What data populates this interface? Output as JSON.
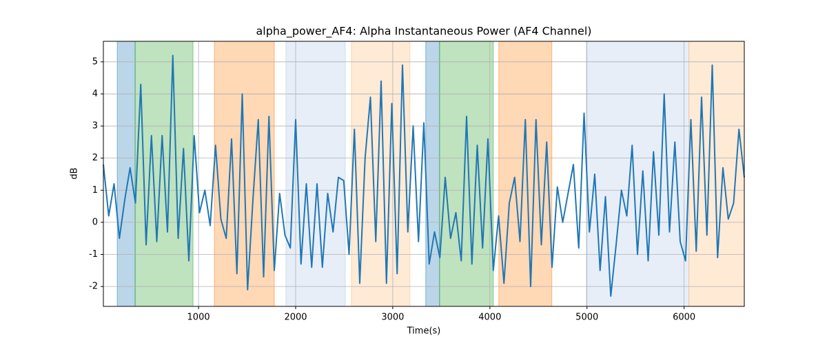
{
  "chart_data": {
    "type": "line",
    "title": "alpha_power_AF4: Alpha Instantaneous Power (AF4 Channel)",
    "x_label": "Time(s)",
    "y_label": "dB",
    "xlim": [
      20,
      6620
    ],
    "ylim": [
      -2.62,
      5.64
    ],
    "xticks": [
      1000,
      2000,
      3000,
      4000,
      5000,
      6000
    ],
    "yticks": [
      -2,
      -1,
      0,
      1,
      2,
      3,
      4,
      5
    ],
    "grid": true,
    "spans": [
      {
        "start": 163,
        "end": 347,
        "color": "#1f77b4",
        "opacity": 0.3
      },
      {
        "start": 347,
        "end": 943,
        "color": "#2ca02c",
        "opacity": 0.3
      },
      {
        "start": 1163,
        "end": 1780,
        "color": "#ff7f0e",
        "opacity": 0.3
      },
      {
        "start": 1900,
        "end": 2511,
        "color": "#aec7e8",
        "opacity": 0.3
      },
      {
        "start": 2574,
        "end": 3177,
        "color": "#ffbb78",
        "opacity": 0.3
      },
      {
        "start": 3340,
        "end": 3482,
        "color": "#1f77b4",
        "opacity": 0.3
      },
      {
        "start": 3482,
        "end": 4035,
        "color": "#2ca02c",
        "opacity": 0.3
      },
      {
        "start": 4092,
        "end": 4638,
        "color": "#ff7f0e",
        "opacity": 0.3
      },
      {
        "start": 4993,
        "end": 6050,
        "color": "#aec7e8",
        "opacity": 0.3
      },
      {
        "start": 6050,
        "end": 6620,
        "color": "#ffbb78",
        "opacity": 0.3
      }
    ],
    "x": [
      20,
      75,
      130,
      185,
      240,
      295,
      350,
      405,
      460,
      515,
      570,
      625,
      680,
      735,
      790,
      845,
      900,
      955,
      1010,
      1065,
      1120,
      1175,
      1230,
      1285,
      1340,
      1395,
      1450,
      1505,
      1560,
      1615,
      1670,
      1725,
      1780,
      1835,
      1890,
      1945,
      2000,
      2055,
      2110,
      2165,
      2220,
      2275,
      2330,
      2385,
      2440,
      2495,
      2550,
      2605,
      2660,
      2715,
      2770,
      2825,
      2880,
      2935,
      2990,
      3045,
      3100,
      3155,
      3210,
      3265,
      3320,
      3375,
      3430,
      3485,
      3540,
      3595,
      3650,
      3705,
      3760,
      3815,
      3870,
      3925,
      3980,
      4035,
      4090,
      4145,
      4200,
      4255,
      4310,
      4365,
      4420,
      4475,
      4530,
      4585,
      4640,
      4695,
      4750,
      4805,
      4860,
      4915,
      4970,
      5025,
      5080,
      5135,
      5190,
      5245,
      5300,
      5355,
      5410,
      5465,
      5520,
      5575,
      5630,
      5685,
      5740,
      5795,
      5850,
      5905,
      5960,
      6015,
      6070,
      6125,
      6180,
      6235,
      6290,
      6345,
      6400,
      6455,
      6510,
      6565,
      6620
    ],
    "series": [
      {
        "color": "#1f77b4",
        "values": [
          1.8,
          0.2,
          1.2,
          -0.5,
          0.7,
          1.7,
          0.6,
          4.3,
          -0.7,
          2.7,
          -0.6,
          2.7,
          -0.3,
          5.2,
          -0.5,
          2.3,
          -1.2,
          2.7,
          0.3,
          1.0,
          -0.1,
          2.4,
          0.1,
          -0.5,
          2.6,
          -1.6,
          4.0,
          -2.1,
          0.7,
          3.2,
          -1.7,
          3.3,
          -1.5,
          0.9,
          -0.4,
          -0.8,
          3.2,
          -1.3,
          1.2,
          -1.4,
          1.2,
          -1.4,
          0.9,
          -0.3,
          1.4,
          1.3,
          -1.0,
          2.9,
          -1.9,
          2.0,
          3.9,
          -0.6,
          4.4,
          -1.9,
          3.7,
          -1.6,
          4.9,
          -0.3,
          3.0,
          -0.6,
          3.1,
          -1.3,
          -0.3,
          -1.1,
          1.4,
          -0.5,
          0.3,
          -1.2,
          3.3,
          -1.3,
          2.4,
          -0.8,
          2.6,
          -1.5,
          0.2,
          -1.9,
          0.6,
          1.4,
          -0.6,
          3.2,
          -2.0,
          3.2,
          -0.7,
          2.5,
          -1.4,
          1.1,
          0.0,
          0.9,
          1.8,
          -0.8,
          3.4,
          -0.3,
          1.5,
          -1.5,
          0.8,
          -2.3,
          -0.7,
          1.0,
          0.2,
          2.4,
          -1.0,
          1.6,
          -1.2,
          2.2,
          -0.4,
          4.0,
          -0.3,
          2.5,
          -0.6,
          -1.2,
          3.2,
          -0.9,
          3.9,
          -0.4,
          4.9,
          -1.1,
          1.7,
          0.1,
          0.6,
          2.9,
          1.4
        ]
      }
    ]
  }
}
